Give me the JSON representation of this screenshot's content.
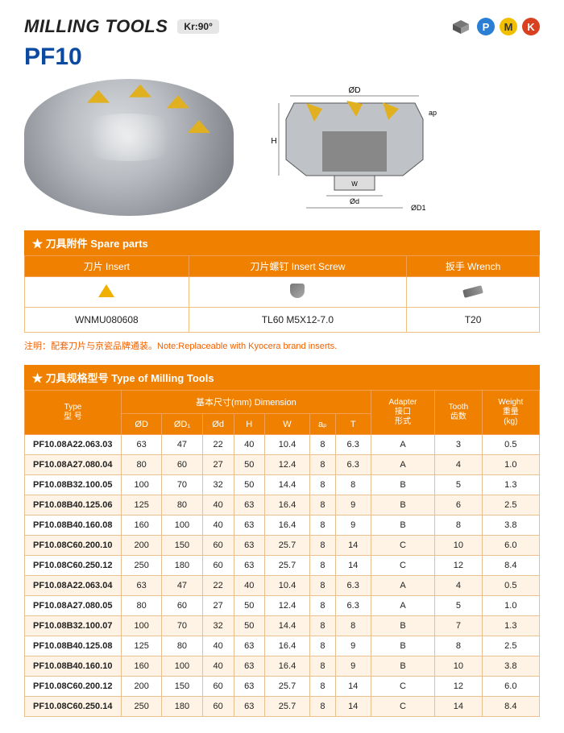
{
  "header": {
    "title": "MILLING TOOLS",
    "kr_label": "Kr:90°",
    "model": "PF10",
    "dim_top": "ØD",
    "dim_h": "H",
    "dim_w": "W",
    "dim_d": "Ød",
    "dim_d1": "ØD1",
    "dim_ap": "ap"
  },
  "badges": {
    "p": {
      "letter": "P",
      "bg": "#2a7fd4"
    },
    "m": {
      "letter": "M",
      "bg": "#f0c000"
    },
    "k": {
      "letter": "K",
      "bg": "#d84020"
    }
  },
  "spare": {
    "section_title": "★ 刀具附件 Spare parts",
    "cols": {
      "insert": "刀片 Insert",
      "screw": "刀片螺钉 Insert Screw",
      "wrench": "扳手 Wrench"
    },
    "vals": {
      "insert": "WNMU080608",
      "screw": "TL60 M5X12-7.0",
      "wrench": "T20"
    },
    "note": "注明：配套刀片与京瓷品牌通装。Note:Replaceable with Kyocera brand inserts."
  },
  "spec": {
    "section_title": "★ 刀具规格型号 Type of Milling Tools",
    "head": {
      "type": "Type\n型 号",
      "dimension": "基本尺寸(mm) Dimension",
      "adapter": "Adapter\n接口\n形式",
      "tooth": "Tooth\n齿数",
      "weight": "Weight\n重量\n(kg)",
      "cols": [
        "ØD",
        "ØD₁",
        "Ød",
        "H",
        "W",
        "aₚ",
        "T"
      ]
    },
    "rows": [
      {
        "type": "PF10.08A22.063.03",
        "d": "63",
        "d1": "47",
        "dd": "22",
        "h": "40",
        "w": "10.4",
        "ap": "8",
        "t": "6.3",
        "ad": "A",
        "tooth": "3",
        "wt": "0.5"
      },
      {
        "type": "PF10.08A27.080.04",
        "d": "80",
        "d1": "60",
        "dd": "27",
        "h": "50",
        "w": "12.4",
        "ap": "8",
        "t": "6.3",
        "ad": "A",
        "tooth": "4",
        "wt": "1.0"
      },
      {
        "type": "PF10.08B32.100.05",
        "d": "100",
        "d1": "70",
        "dd": "32",
        "h": "50",
        "w": "14.4",
        "ap": "8",
        "t": "8",
        "ad": "B",
        "tooth": "5",
        "wt": "1.3"
      },
      {
        "type": "PF10.08B40.125.06",
        "d": "125",
        "d1": "80",
        "dd": "40",
        "h": "63",
        "w": "16.4",
        "ap": "8",
        "t": "9",
        "ad": "B",
        "tooth": "6",
        "wt": "2.5"
      },
      {
        "type": "PF10.08B40.160.08",
        "d": "160",
        "d1": "100",
        "dd": "40",
        "h": "63",
        "w": "16.4",
        "ap": "8",
        "t": "9",
        "ad": "B",
        "tooth": "8",
        "wt": "3.8"
      },
      {
        "type": "PF10.08C60.200.10",
        "d": "200",
        "d1": "150",
        "dd": "60",
        "h": "63",
        "w": "25.7",
        "ap": "8",
        "t": "14",
        "ad": "C",
        "tooth": "10",
        "wt": "6.0"
      },
      {
        "type": "PF10.08C60.250.12",
        "d": "250",
        "d1": "180",
        "dd": "60",
        "h": "63",
        "w": "25.7",
        "ap": "8",
        "t": "14",
        "ad": "C",
        "tooth": "12",
        "wt": "8.4"
      },
      {
        "type": "PF10.08A22.063.04",
        "d": "63",
        "d1": "47",
        "dd": "22",
        "h": "40",
        "w": "10.4",
        "ap": "8",
        "t": "6.3",
        "ad": "A",
        "tooth": "4",
        "wt": "0.5"
      },
      {
        "type": "PF10.08A27.080.05",
        "d": "80",
        "d1": "60",
        "dd": "27",
        "h": "50",
        "w": "12.4",
        "ap": "8",
        "t": "6.3",
        "ad": "A",
        "tooth": "5",
        "wt": "1.0"
      },
      {
        "type": "PF10.08B32.100.07",
        "d": "100",
        "d1": "70",
        "dd": "32",
        "h": "50",
        "w": "14.4",
        "ap": "8",
        "t": "8",
        "ad": "B",
        "tooth": "7",
        "wt": "1.3"
      },
      {
        "type": "PF10.08B40.125.08",
        "d": "125",
        "d1": "80",
        "dd": "40",
        "h": "63",
        "w": "16.4",
        "ap": "8",
        "t": "9",
        "ad": "B",
        "tooth": "8",
        "wt": "2.5"
      },
      {
        "type": "PF10.08B40.160.10",
        "d": "160",
        "d1": "100",
        "dd": "40",
        "h": "63",
        "w": "16.4",
        "ap": "8",
        "t": "9",
        "ad": "B",
        "tooth": "10",
        "wt": "3.8"
      },
      {
        "type": "PF10.08C60.200.12",
        "d": "200",
        "d1": "150",
        "dd": "60",
        "h": "63",
        "w": "25.7",
        "ap": "8",
        "t": "14",
        "ad": "C",
        "tooth": "12",
        "wt": "6.0"
      },
      {
        "type": "PF10.08C60.250.14",
        "d": "250",
        "d1": "180",
        "dd": "60",
        "h": "63",
        "w": "25.7",
        "ap": "8",
        "t": "14",
        "ad": "C",
        "tooth": "14",
        "wt": "8.4"
      }
    ]
  },
  "colors": {
    "accent": "#f08000",
    "row_alt": "#fef3e4",
    "border": "#f0c080",
    "model": "#0a4aa0"
  }
}
